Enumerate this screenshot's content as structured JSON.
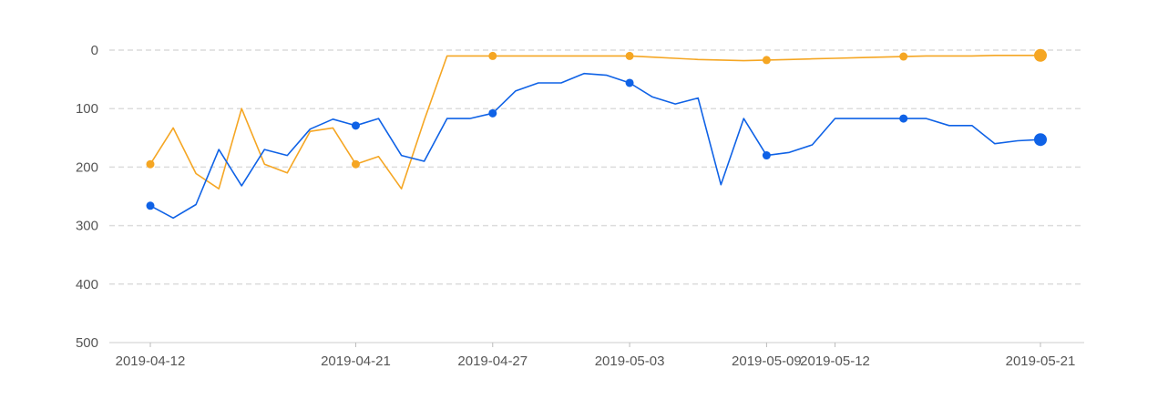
{
  "chart_data": {
    "type": "line",
    "y_axis": {
      "inverted": true,
      "ylim": [
        0,
        500
      ],
      "ticks": [
        "0",
        "100",
        "200",
        "300",
        "400",
        "500"
      ],
      "grid": "dashed"
    },
    "x_axis": {
      "tick_labels": [
        "2019-04-12",
        "2019-04-21",
        "2019-04-27",
        "2019-05-03",
        "2019-05-09",
        "2019-05-12",
        "2019-05-21"
      ]
    },
    "categories": [
      "2019-04-12",
      "2019-04-13",
      "2019-04-14",
      "2019-04-15",
      "2019-04-16",
      "2019-04-17",
      "2019-04-18",
      "2019-04-19",
      "2019-04-20",
      "2019-04-21",
      "2019-04-22",
      "2019-04-23",
      "2019-04-24",
      "2019-04-25",
      "2019-04-26",
      "2019-04-27",
      "2019-04-28",
      "2019-04-29",
      "2019-04-30",
      "2019-05-01",
      "2019-05-02",
      "2019-05-03",
      "2019-05-04",
      "2019-05-05",
      "2019-05-06",
      "2019-05-07",
      "2019-05-08",
      "2019-05-09",
      "2019-05-10",
      "2019-05-11",
      "2019-05-12",
      "2019-05-13",
      "2019-05-14",
      "2019-05-15",
      "2019-05-16",
      "2019-05-17",
      "2019-05-18",
      "2019-05-19",
      "2019-05-20",
      "2019-05-21"
    ],
    "series": [
      {
        "color": "#0f62e6",
        "values": [
          266,
          287,
          264,
          170,
          232,
          170,
          180,
          135,
          118,
          129,
          117,
          180,
          190,
          117,
          117,
          108,
          70,
          56,
          56,
          40,
          43,
          56,
          80,
          92,
          82,
          230,
          117,
          180,
          175,
          162,
          117,
          117,
          117,
          117,
          117,
          129,
          129,
          160,
          155,
          153
        ],
        "marker_indices": [
          0,
          9,
          15,
          21,
          27,
          33,
          39
        ]
      },
      {
        "color": "#f5a623",
        "values": [
          195,
          133,
          211,
          237,
          100,
          195,
          210,
          139,
          133,
          195,
          182,
          237,
          120,
          10,
          10,
          10,
          10,
          10,
          10,
          10,
          10,
          10,
          12,
          14,
          16,
          17,
          18,
          17,
          16,
          15,
          14,
          13,
          12,
          11,
          10,
          10,
          10,
          9,
          9,
          9
        ],
        "marker_indices": [
          0,
          9,
          15,
          21,
          27,
          33,
          39
        ]
      }
    ]
  }
}
